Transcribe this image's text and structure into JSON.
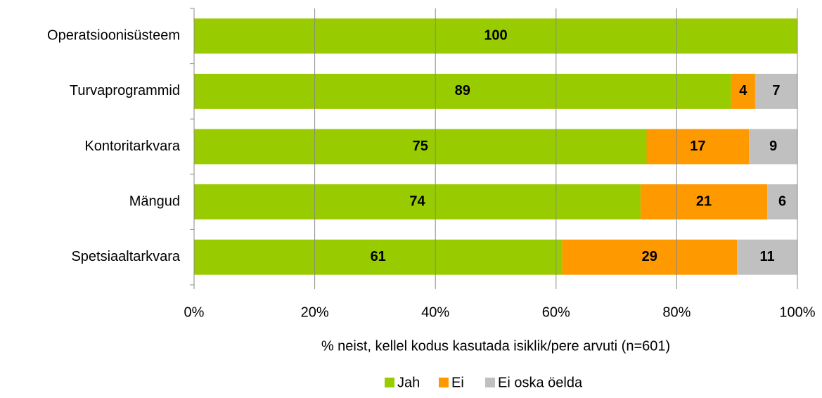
{
  "chart_data": {
    "type": "stacked_barh",
    "categories": [
      "Operatsioonisüsteem",
      "Turvaprogrammid",
      "Kontoritarkvara",
      "Mängud",
      "Spetsiaaltarkvara"
    ],
    "series": [
      {
        "name": "Jah",
        "color": "#99cc00",
        "values": [
          100,
          89,
          75,
          74,
          61
        ]
      },
      {
        "name": "Ei",
        "color": "#ff9900",
        "values": [
          null,
          4,
          17,
          21,
          29
        ]
      },
      {
        "name": "Ei oska öelda",
        "color": "#c0c0c0",
        "values": [
          null,
          7,
          9,
          6,
          11
        ]
      }
    ],
    "xlabel": "% neist, kellel kodus kasutada isiklik/pere arvuti (n=601)",
    "xlim": [
      0,
      100
    ],
    "xticks": [
      {
        "value": 0,
        "label": "0%"
      },
      {
        "value": 20,
        "label": "20%"
      },
      {
        "value": 40,
        "label": "40%"
      },
      {
        "value": 60,
        "label": "60%"
      },
      {
        "value": 80,
        "label": "80%"
      },
      {
        "value": 100,
        "label": "100%"
      }
    ],
    "grid": true,
    "legend": "bottom"
  }
}
